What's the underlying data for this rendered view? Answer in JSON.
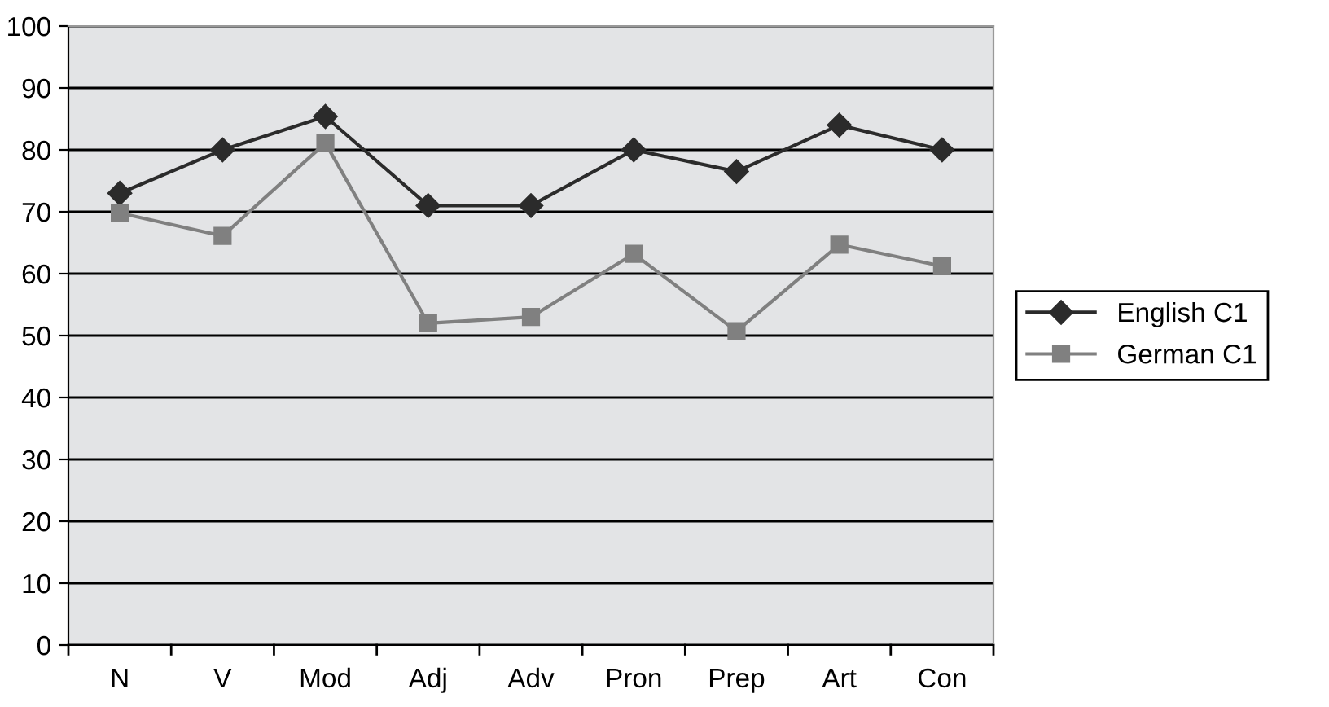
{
  "chart_data": {
    "type": "line",
    "categories": [
      "N",
      "V",
      "Mod",
      "Adj",
      "Adv",
      "Pron",
      "Prep",
      "Art",
      "Con"
    ],
    "series": [
      {
        "name": "English C1",
        "color": "#2b2b2b",
        "marker": "diamond",
        "values": [
          73,
          80,
          85.4,
          71,
          71,
          80,
          76.5,
          84,
          80
        ]
      },
      {
        "name": "German C1",
        "color": "#808080",
        "marker": "square",
        "values": [
          69.8,
          66.1,
          81.1,
          52,
          53,
          63.2,
          50.7,
          64.7,
          61.2
        ]
      }
    ],
    "ylim": [
      0,
      100
    ],
    "yticks": [
      0,
      10,
      20,
      30,
      40,
      50,
      60,
      70,
      80,
      90,
      100
    ],
    "grid": "y",
    "legend": "right"
  }
}
